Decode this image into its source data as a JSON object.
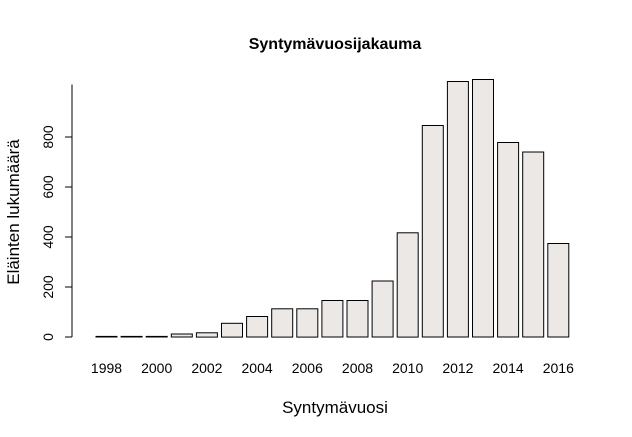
{
  "chart_data": {
    "type": "bar",
    "title": "Syntymävuosijakauma",
    "xlabel": "Syntymävuosi",
    "ylabel": "Eläinten lukumäärä",
    "categories": [
      "1998",
      "1999",
      "2000",
      "2001",
      "2002",
      "2003",
      "2004",
      "2005",
      "2006",
      "2007",
      "2008",
      "2009",
      "2010",
      "2011",
      "2012",
      "2013",
      "2014",
      "2015",
      "2016"
    ],
    "x_tick_labels": [
      "1998",
      "",
      "2000",
      "",
      "2002",
      "",
      "2004",
      "",
      "2006",
      "",
      "2008",
      "",
      "2010",
      "",
      "2012",
      "",
      "2014",
      "",
      "2016"
    ],
    "values": [
      1,
      1,
      1,
      12,
      17,
      55,
      82,
      113,
      113,
      146,
      146,
      224,
      417,
      846,
      1022,
      1030,
      778,
      740,
      374
    ],
    "yticks": [
      0,
      200,
      400,
      600,
      800
    ],
    "ylim": [
      0,
      1030
    ],
    "grid": false,
    "bar_color": "#ece8e6",
    "bar_border_color": "#000000"
  }
}
